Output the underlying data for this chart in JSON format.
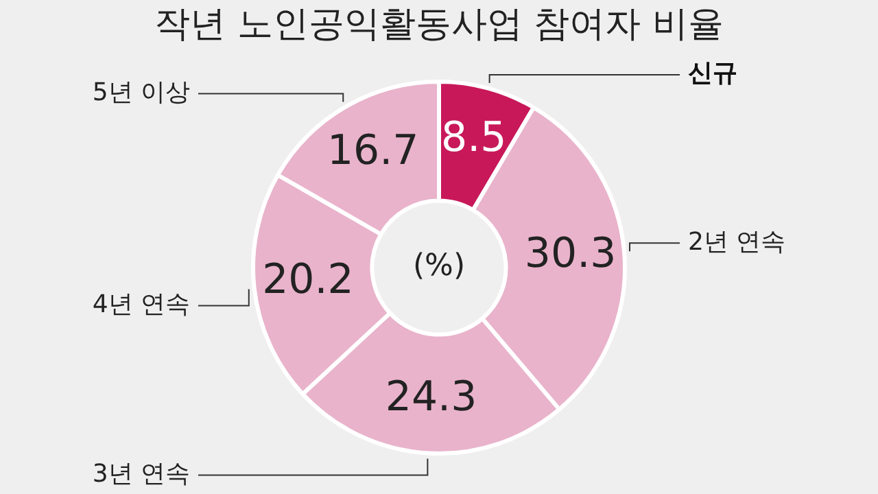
{
  "chart_data": {
    "type": "donut",
    "title": "작년 노인공익활동사업 참여자 비율",
    "categories": [
      "신규",
      "2년 연속",
      "3년 연속",
      "4년 연속",
      "5년 이상"
    ],
    "values": [
      8.5,
      30.3,
      24.3,
      20.2,
      16.7
    ],
    "colors": [
      "#c8185a",
      "#e9b3cb",
      "#e9b3cb",
      "#e9b3cb",
      "#e9b3cb"
    ],
    "data_labels": true,
    "legend": false,
    "annotations": [
      "(%)"
    ]
  }
}
